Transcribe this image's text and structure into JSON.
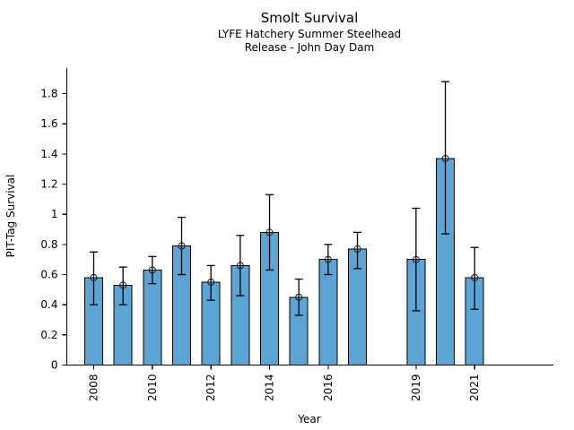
{
  "chart_data": {
    "type": "bar",
    "title": "Smolt Survival",
    "subtitle1": "LYFE Hatchery Summer Steelhead",
    "subtitle2": "Release - John Day Dam",
    "xlabel": "Year",
    "ylabel": "PIT-Tag Survival",
    "ylim": [
      0,
      1.97
    ],
    "grid": false,
    "legend": "none",
    "bar_color": "#5ba4d4",
    "bar_edge_color": "#000000",
    "error_bar_color": "#000000",
    "marker": "circle-plus-open",
    "categories": [
      "2008",
      "2009",
      "2010",
      "2011",
      "2012",
      "2013",
      "2014",
      "2015",
      "2016",
      "2017",
      "2018",
      "2019",
      "2020",
      "2021"
    ],
    "values": [
      0.58,
      0.53,
      0.63,
      0.79,
      0.55,
      0.66,
      0.88,
      0.45,
      0.7,
      0.77,
      null,
      0.7,
      1.37,
      0.58
    ],
    "error_low": [
      0.4,
      0.4,
      0.54,
      0.6,
      0.43,
      0.46,
      0.63,
      0.33,
      0.6,
      0.64,
      null,
      0.36,
      0.87,
      0.37
    ],
    "error_high": [
      0.75,
      0.65,
      0.72,
      0.98,
      0.66,
      0.86,
      1.13,
      0.57,
      0.8,
      0.88,
      null,
      1.04,
      1.88,
      0.78
    ],
    "missing_years": [
      "2018"
    ],
    "x_tick_labels": [
      "2008",
      "2010",
      "2012",
      "2014",
      "2016",
      "2019",
      "2021"
    ],
    "y_ticks": [
      0,
      0.2,
      0.4,
      0.6,
      0.8,
      1,
      1.2,
      1.4,
      1.6,
      1.8
    ]
  }
}
